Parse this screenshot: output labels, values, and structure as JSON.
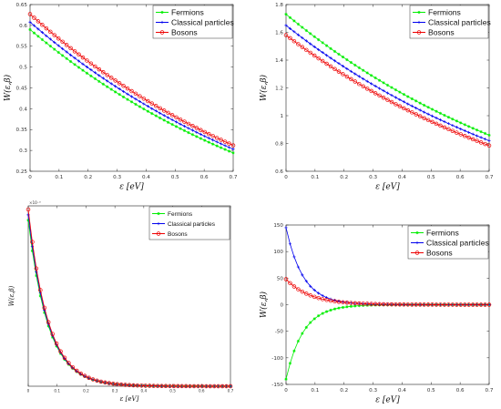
{
  "colors": {
    "fermions": "#00ee00",
    "classical": "#0000ee",
    "bosons": "#ee0000"
  },
  "chart_data": [
    {
      "type": "line",
      "xlabel": "ε [eV]",
      "ylabel": "W(ε,β)",
      "xlim": [
        0,
        0.7
      ],
      "ylim": [
        0.25,
        0.65
      ],
      "xticks": [
        0,
        0.1,
        0.2,
        0.3,
        0.4,
        0.5,
        0.6,
        0.7
      ],
      "yticks": [
        0.25,
        0.3,
        0.35,
        0.4,
        0.45,
        0.5,
        0.55,
        0.6,
        0.65
      ],
      "legend_position": "top-right",
      "series": [
        {
          "name": "Fermions",
          "key": "fermions",
          "marker": "star",
          "y_start": 0.59,
          "y_end": 0.294
        },
        {
          "name": "Classical particles",
          "key": "classical",
          "marker": "plus",
          "y_start": 0.608,
          "y_end": 0.303
        },
        {
          "name": "Bosons",
          "key": "bosons",
          "marker": "circle",
          "y_start": 0.627,
          "y_end": 0.312
        }
      ]
    },
    {
      "type": "line",
      "xlabel": "ε [eV]",
      "ylabel": "W(ε,β)",
      "xlim": [
        0,
        0.7
      ],
      "ylim": [
        0.6,
        1.8
      ],
      "xticks": [
        0,
        0.1,
        0.2,
        0.3,
        0.4,
        0.5,
        0.6,
        0.7
      ],
      "yticks": [
        0.6,
        0.8,
        1,
        1.2,
        1.4,
        1.6,
        1.8
      ],
      "legend_position": "top-right",
      "series": [
        {
          "name": "Fermions",
          "key": "fermions",
          "marker": "star",
          "y_start": 1.73,
          "y_end": 0.86
        },
        {
          "name": "Classical particles",
          "key": "classical",
          "marker": "plus",
          "y_start": 1.65,
          "y_end": 0.82
        },
        {
          "name": "Bosons",
          "key": "bosons",
          "marker": "circle",
          "y_start": 1.58,
          "y_end": 0.785
        }
      ]
    },
    {
      "type": "line",
      "xlabel": "ε [eV]",
      "ylabel": "W(ε,β)",
      "xlim": [
        0,
        0.7
      ],
      "ylim": [
        0,
        5
      ],
      "y_scale_label": "×10⁻³",
      "xticks": [
        0,
        0.1,
        0.2,
        0.3,
        0.4,
        0.5,
        0.6,
        0.7
      ],
      "yticks": [],
      "legend_position": "top-right",
      "series": [
        {
          "name": "Fermions",
          "key": "fermions",
          "marker": "star",
          "y_start": 4.6,
          "decay": 14.5
        },
        {
          "name": "Classical particles",
          "key": "classical",
          "marker": "plus",
          "y_start": 4.75,
          "decay": 14.5
        },
        {
          "name": "Bosons",
          "key": "bosons",
          "marker": "circle",
          "y_start": 4.9,
          "decay": 14.5
        }
      ]
    },
    {
      "type": "line",
      "xlabel": "ε [eV]",
      "ylabel": "W(ε,β)",
      "xlim": [
        0,
        0.7
      ],
      "ylim": [
        -150,
        150
      ],
      "xticks": [
        0,
        0.1,
        0.2,
        0.3,
        0.4,
        0.5,
        0.6,
        0.7
      ],
      "yticks": [
        -150,
        -100,
        -50,
        0,
        50,
        100,
        150
      ],
      "legend_position": "top-right",
      "series": [
        {
          "name": "Fermions",
          "key": "fermions",
          "marker": "star",
          "y_start": -140,
          "decay": 17
        },
        {
          "name": "Classical particles",
          "key": "classical",
          "marker": "plus",
          "y_start": 145,
          "decay": 17
        },
        {
          "name": "Bosons",
          "key": "bosons",
          "marker": "circle",
          "y_start": 48,
          "decay": 12
        }
      ]
    }
  ]
}
